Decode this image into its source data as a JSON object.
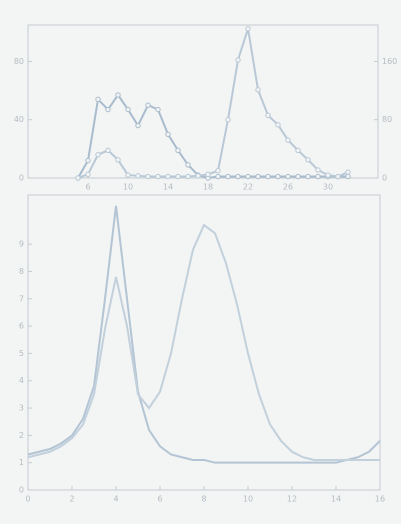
{
  "chart_data": [
    {
      "type": "line",
      "marker": true,
      "x": [
        5,
        6,
        7,
        8,
        9,
        10,
        11,
        12,
        13,
        14,
        15,
        16,
        17,
        18,
        19,
        20,
        21,
        22,
        23,
        24,
        25,
        26,
        27,
        28,
        29,
        30,
        31,
        32
      ],
      "xlim": [
        0,
        35
      ],
      "xticks": [
        6,
        10,
        14,
        18,
        22,
        26,
        30
      ],
      "ylim": [
        0,
        105
      ],
      "yticks": [
        0,
        40,
        80
      ],
      "y2lim": [
        0,
        210
      ],
      "y2ticks": [
        0,
        80,
        160
      ],
      "series": [
        {
          "color": "#a9bccd",
          "values": [
            0,
            12,
            54,
            47,
            57,
            47,
            36,
            50,
            47,
            30,
            19,
            9,
            2,
            0,
            1,
            1,
            1,
            1,
            1,
            1,
            1,
            1,
            1,
            1,
            1,
            1,
            1,
            1
          ]
        },
        {
          "color": "#b9c8d6",
          "axis": "y2",
          "values": [
            0,
            5,
            32,
            38,
            25,
            4,
            3,
            2,
            2,
            2,
            2,
            2,
            3,
            5,
            10,
            80,
            162,
            205,
            121,
            86,
            73,
            52,
            38,
            25,
            11,
            4,
            2,
            8
          ]
        }
      ]
    },
    {
      "type": "line",
      "marker": false,
      "x": [
        0,
        0.5,
        1,
        1.5,
        2,
        2.5,
        3,
        3.5,
        4,
        4.5,
        5,
        5.5,
        6,
        6.5,
        7,
        7.5,
        8,
        8.5,
        9,
        9.5,
        10,
        10.5,
        11,
        11.5,
        12,
        12.5,
        13,
        13.5,
        14,
        14.5,
        15,
        15.5,
        16
      ],
      "xlim": [
        0,
        16
      ],
      "xticks": [
        0,
        2,
        4,
        6,
        8,
        10,
        12,
        14,
        16
      ],
      "ylim": [
        0,
        10.8
      ],
      "yticks": [
        0,
        1,
        2,
        3,
        4,
        5,
        6,
        7,
        8,
        9
      ],
      "series": [
        {
          "color": "#b3c4d4",
          "values": [
            1.3,
            1.4,
            1.5,
            1.7,
            2.0,
            2.6,
            3.8,
            7.0,
            10.4,
            7.0,
            3.6,
            2.2,
            1.6,
            1.3,
            1.2,
            1.1,
            1.1,
            1.0,
            1.0,
            1.0,
            1.0,
            1.0,
            1.0,
            1.0,
            1.0,
            1.0,
            1.0,
            1.0,
            1.0,
            1.1,
            1.2,
            1.4,
            1.8
          ]
        },
        {
          "color": "#c2d0dc",
          "values": [
            1.2,
            1.3,
            1.4,
            1.6,
            1.9,
            2.4,
            3.5,
            5.9,
            7.8,
            6.0,
            3.5,
            3.0,
            3.6,
            5.0,
            7.0,
            8.8,
            9.7,
            9.4,
            8.3,
            6.8,
            5.0,
            3.5,
            2.4,
            1.8,
            1.4,
            1.2,
            1.1,
            1.1,
            1.1,
            1.1,
            1.1,
            1.1,
            1.1
          ]
        }
      ]
    }
  ]
}
